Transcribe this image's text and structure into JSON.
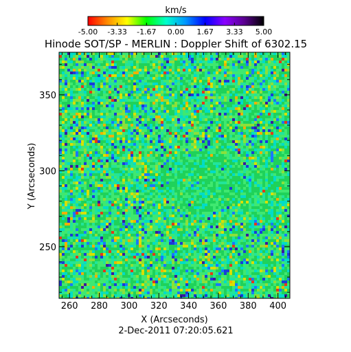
{
  "chart_data": {
    "type": "heatmap",
    "title": "Hinode SOT/SP - MERLIN : Doppler Shift of 6302.15",
    "colorbar": {
      "unit": "km/s",
      "ticks": [
        "-5.00",
        "-3.33",
        "-1.67",
        "0.00",
        "1.67",
        "3.33",
        "5.00"
      ],
      "range": [
        -5.0,
        5.0
      ],
      "colors": [
        "#ff0000",
        "#ff8c00",
        "#ffff00",
        "#00ff00",
        "#00ffcc",
        "#0096ff",
        "#0000ff",
        "#8a00ff",
        "#5a0090",
        "#000000"
      ]
    },
    "xlabel": "X (Arcseconds)",
    "ylabel": "Y (Arcseconds)",
    "xlim": [
      253,
      408
    ],
    "ylim": [
      216,
      378
    ],
    "xticks": [
      260,
      280,
      300,
      320,
      340,
      360,
      380,
      400
    ],
    "yticks": [
      250,
      300,
      350
    ],
    "timestamp": "2-Dec-2011 07:20:05.621",
    "field_description": "Velocity field dominated by near-zero (green) values with scattered small-scale red/yellow and blue/purple fluctuations; calmer cyan region near center-right."
  }
}
